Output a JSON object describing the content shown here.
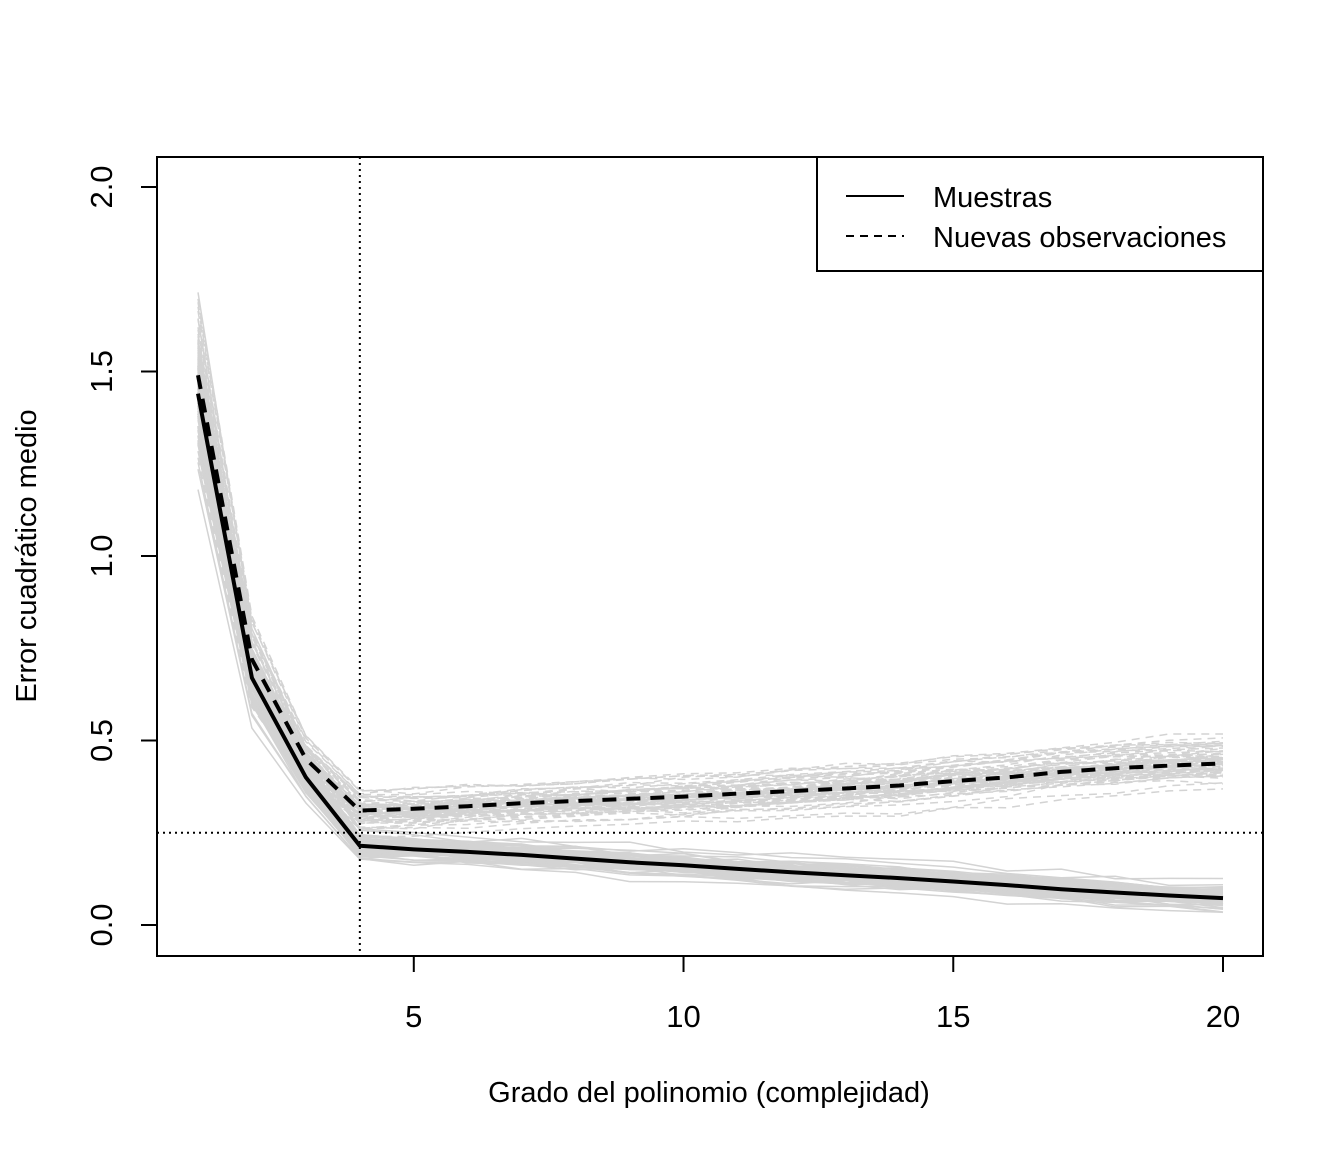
{
  "chart_data": {
    "type": "line",
    "title": "",
    "xlabel": "Grado del polinomio (complejidad)",
    "ylabel": "Error cuadrático medio",
    "xlim": [
      1,
      20
    ],
    "ylim": [
      0,
      2.0
    ],
    "xticks": [
      5,
      10,
      15,
      20
    ],
    "yticks": [
      0.0,
      0.5,
      1.0,
      1.5,
      2.0
    ],
    "ytick_labels": [
      "0.0",
      "0.5",
      "1.0",
      "1.5",
      "2.0"
    ],
    "grid": false,
    "legend_position": "top-right",
    "x": [
      1,
      2,
      3,
      4,
      5,
      6,
      7,
      8,
      9,
      10,
      11,
      12,
      13,
      14,
      15,
      16,
      17,
      18,
      19,
      20
    ],
    "series": [
      {
        "name": "Muestras",
        "style": "solid",
        "color": "#000000",
        "values": [
          1.44,
          0.67,
          0.4,
          0.215,
          0.205,
          0.198,
          0.19,
          0.18,
          0.17,
          0.162,
          0.152,
          0.143,
          0.135,
          0.127,
          0.118,
          0.108,
          0.097,
          0.088,
          0.08,
          0.073
        ]
      },
      {
        "name": "Nuevas observaciones",
        "style": "dashed",
        "color": "#000000",
        "values": [
          1.49,
          0.72,
          0.45,
          0.31,
          0.315,
          0.322,
          0.33,
          0.336,
          0.342,
          0.348,
          0.356,
          0.363,
          0.37,
          0.378,
          0.39,
          0.4,
          0.415,
          0.425,
          0.432,
          0.438
        ]
      }
    ],
    "reference_lines": {
      "vertical_x": 4,
      "horizontal_y": 0.25
    },
    "background_replicates_color": "#d3d3d3"
  },
  "legend": {
    "items": [
      {
        "label": "Muestras",
        "style": "solid"
      },
      {
        "label": "Nuevas observaciones",
        "style": "dashed"
      }
    ]
  }
}
